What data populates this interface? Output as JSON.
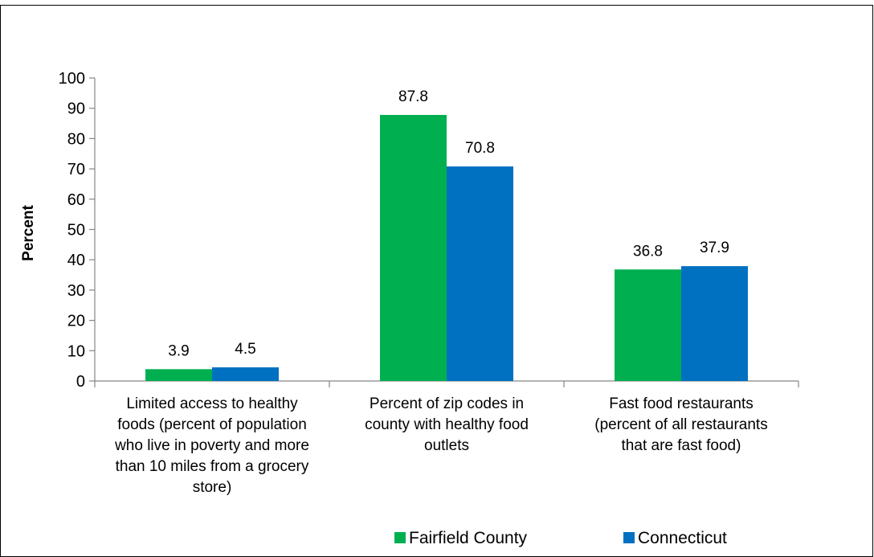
{
  "chart_data": {
    "type": "bar",
    "categories": [
      [
        "Limited access to healthy",
        "foods (percent of population",
        "who live in poverty and more",
        "than 10 miles from a grocery",
        "store)"
      ],
      [
        "Percent of zip codes in",
        "county with healthy food",
        "outlets"
      ],
      [
        "Fast food restaurants",
        "(percent of all restaurants",
        "that are fast food)"
      ]
    ],
    "series": [
      {
        "name": "Fairfield County",
        "color": "#00b050",
        "values": [
          3.9,
          87.8,
          36.8
        ],
        "labels": [
          "3.9",
          "87.8",
          "36.8"
        ]
      },
      {
        "name": "Connecticut",
        "color": "#0070c0",
        "values": [
          4.5,
          70.8,
          37.9
        ],
        "labels": [
          "4.5",
          "70.8",
          "37.9"
        ]
      }
    ],
    "ylabel": "Percent",
    "ylim": [
      0,
      100
    ],
    "yticks": [
      "0",
      "10",
      "20",
      "30",
      "40",
      "50",
      "60",
      "70",
      "80",
      "90",
      "100"
    ],
    "grid": false,
    "legend_position": "bottom"
  }
}
